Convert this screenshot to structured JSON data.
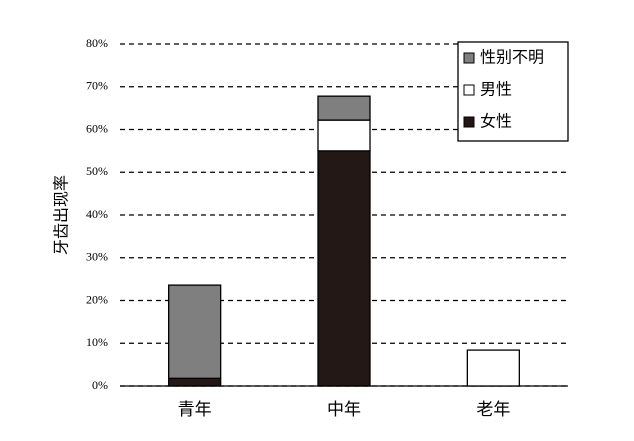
{
  "chart_data": {
    "type": "stacked_bar",
    "y_label": "牙齿出现率",
    "categories": [
      "青年",
      "中年",
      "老年"
    ],
    "series": [
      {
        "name": "女性",
        "color": "#231815",
        "values": [
          1.8,
          55.0,
          0
        ]
      },
      {
        "name": "男性",
        "color": "#ffffff",
        "values": [
          0,
          7.2,
          8.4
        ]
      },
      {
        "name": "性别不明",
        "color": "#7f7f7f",
        "values": [
          21.8,
          5.6,
          0
        ]
      }
    ],
    "ylim": [
      0,
      80
    ],
    "yticks": [
      {
        "value": 0,
        "label": "0%"
      },
      {
        "value": 10,
        "label": "10%"
      },
      {
        "value": 20,
        "label": "20%"
      },
      {
        "value": 30,
        "label": "30%"
      },
      {
        "value": 40,
        "label": "40%"
      },
      {
        "value": 50,
        "label": "50%"
      },
      {
        "value": 60,
        "label": "60%"
      },
      {
        "value": 70,
        "label": "70%"
      },
      {
        "value": 80,
        "label": "80%"
      }
    ],
    "grid": true,
    "legend": "top-right"
  }
}
